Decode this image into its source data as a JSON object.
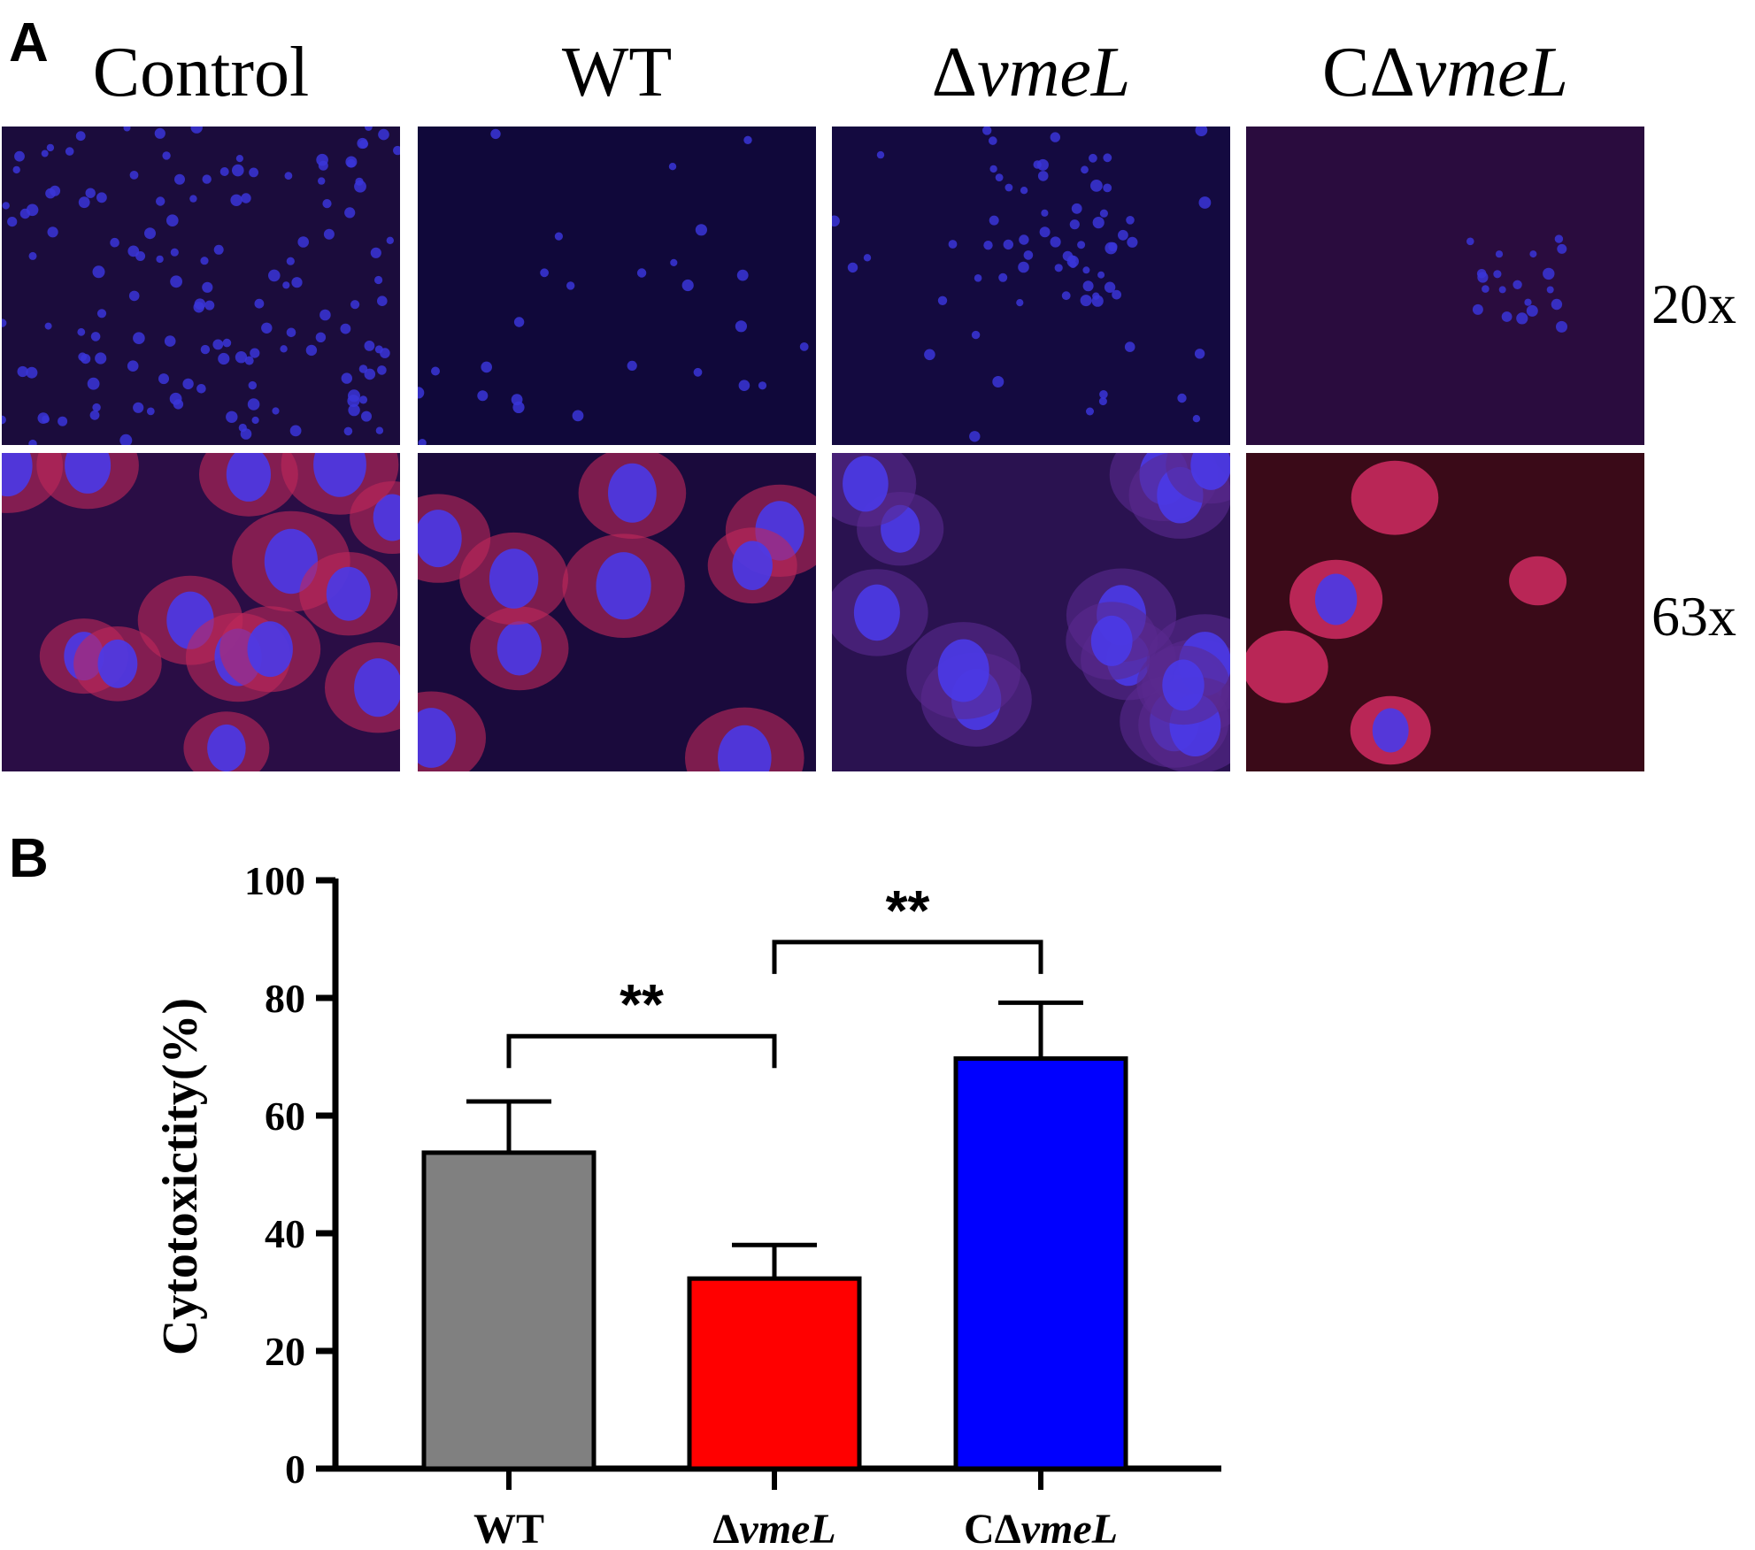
{
  "panel_a": {
    "label": "A",
    "columns": [
      {
        "name": "Control",
        "prefix": "Control",
        "italic": ""
      },
      {
        "name": "WT",
        "prefix": "WT",
        "italic": ""
      },
      {
        "name": "ΔvmeL",
        "prefix": "Δ",
        "italic": "vmeL"
      },
      {
        "name": "CΔvmeL",
        "prefix": "CΔ",
        "italic": "vmeL"
      }
    ],
    "rows": [
      "20x",
      "63x"
    ],
    "colors": {
      "nucleus": "#3a2fe0",
      "actin": "#e02a55",
      "background": "#1a0a3c"
    }
  },
  "panel_b": {
    "label": "B"
  },
  "chart_data": {
    "type": "bar",
    "title": "",
    "xlabel": "",
    "ylabel": "Cytotoxictity(%)",
    "ylim": [
      0,
      100
    ],
    "yticks": [
      0,
      20,
      40,
      60,
      80,
      100
    ],
    "categories": [
      {
        "prefix": "WT",
        "italic": ""
      },
      {
        "prefix": "Δ",
        "italic": "vmeL"
      },
      {
        "prefix": "CΔ",
        "italic": "vmeL"
      }
    ],
    "values": [
      53.7,
      32.3,
      69.7
    ],
    "errors": [
      8.7,
      5.7,
      9.5
    ],
    "colors": [
      "#808080",
      "#ff0000",
      "#0000ff"
    ],
    "significance": [
      {
        "from": 0,
        "to": 1,
        "label": "**",
        "y": 73.5
      },
      {
        "from": 1,
        "to": 2,
        "label": "**",
        "y": 89.5
      }
    ]
  }
}
